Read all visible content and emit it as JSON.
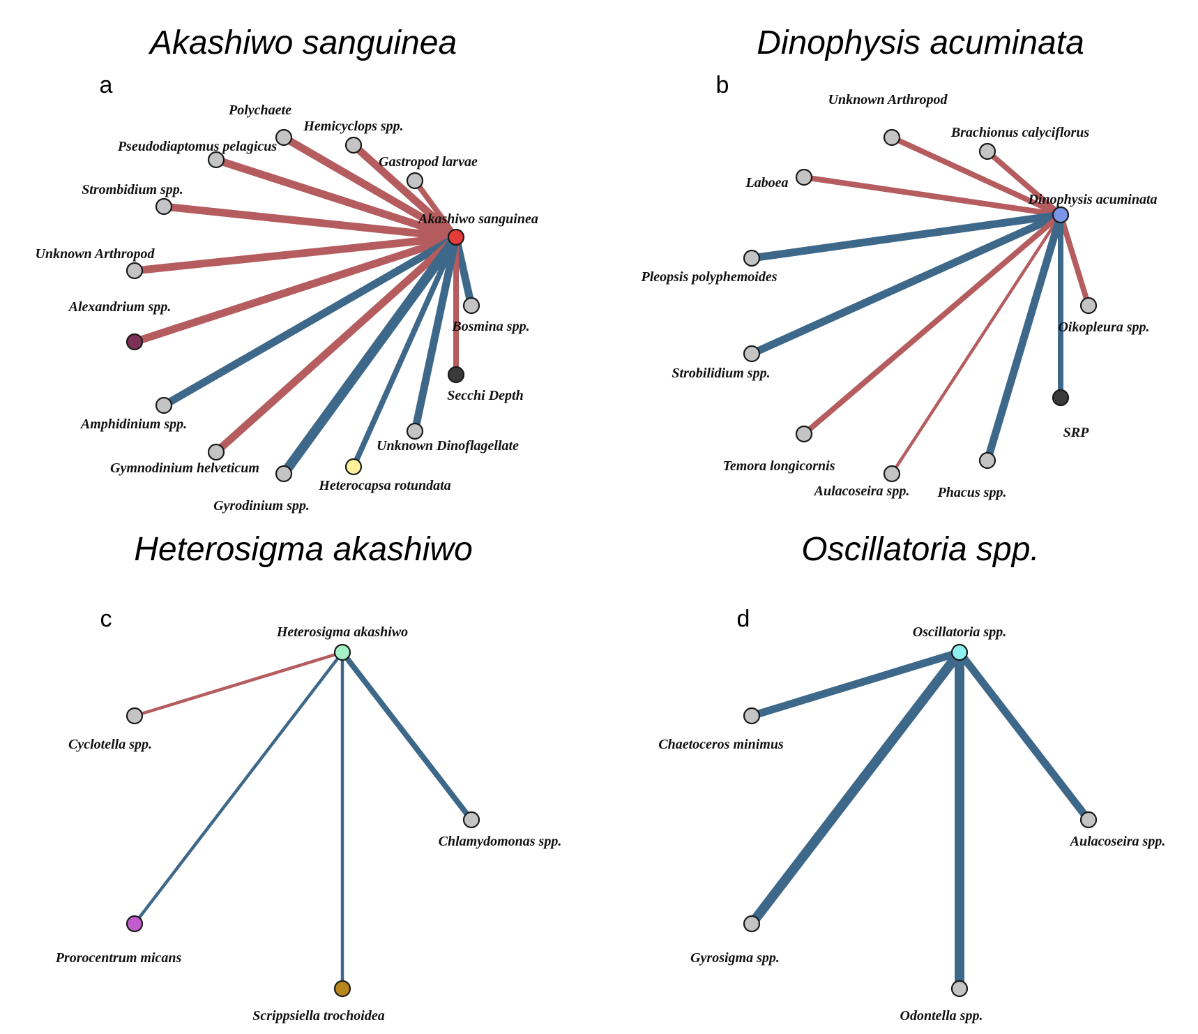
{
  "colors": {
    "positive": "#3d6889",
    "negative": "#b55c5f",
    "default_node": "#c4c4c4"
  },
  "panels": [
    {
      "letter": "a",
      "title": "Akashiwo sanguinea",
      "nodes": [
        {
          "label": "Akashiwo sanguinea",
          "color": "#e53b3b"
        },
        {
          "label": "Polychaete",
          "color": "#c4c4c4"
        },
        {
          "label": "Hemicyclops spp.",
          "color": "#c4c4c4"
        },
        {
          "label": "Pseudodiaptomus pelagicus",
          "color": "#c4c4c4"
        },
        {
          "label": "Gastropod larvae",
          "color": "#c4c4c4"
        },
        {
          "label": "Strombidium spp.",
          "color": "#c4c4c4"
        },
        {
          "label": "Unknown Arthropod",
          "color": "#c4c4c4"
        },
        {
          "label": "Alexandrium spp.",
          "color": "#7e3158"
        },
        {
          "label": "Bosmina spp.",
          "color": "#c4c4c4"
        },
        {
          "label": "Secchi Depth",
          "color": "#3a3a3a"
        },
        {
          "label": "Amphidinium spp.",
          "color": "#c4c4c4"
        },
        {
          "label": "Unknown Dinoflagellate",
          "color": "#c4c4c4"
        },
        {
          "label": "Gymnodinium helveticum",
          "color": "#c4c4c4"
        },
        {
          "label": "Gyrodinium spp.",
          "color": "#c4c4c4"
        },
        {
          "label": "Heterocapsa rotundata",
          "color": "#fff29a"
        }
      ],
      "edges": [
        {
          "target": "Polychaete",
          "sign": "negative",
          "weight": 3
        },
        {
          "target": "Hemicyclops spp.",
          "sign": "negative",
          "weight": 3
        },
        {
          "target": "Pseudodiaptomus pelagicus",
          "sign": "negative",
          "weight": 3
        },
        {
          "target": "Gastropod larvae",
          "sign": "negative",
          "weight": 2
        },
        {
          "target": "Strombidium spp.",
          "sign": "negative",
          "weight": 3
        },
        {
          "target": "Unknown Arthropod",
          "sign": "negative",
          "weight": 3
        },
        {
          "target": "Alexandrium spp.",
          "sign": "negative",
          "weight": 3
        },
        {
          "target": "Bosmina spp.",
          "sign": "positive",
          "weight": 3
        },
        {
          "target": "Secchi Depth",
          "sign": "negative",
          "weight": 2
        },
        {
          "target": "Amphidinium spp.",
          "sign": "positive",
          "weight": 3
        },
        {
          "target": "Unknown Dinoflagellate",
          "sign": "positive",
          "weight": 3
        },
        {
          "target": "Gymnodinium helveticum",
          "sign": "negative",
          "weight": 3
        },
        {
          "target": "Gyrodinium spp.",
          "sign": "positive",
          "weight": 4
        },
        {
          "target": "Heterocapsa rotundata",
          "sign": "positive",
          "weight": 2
        }
      ]
    },
    {
      "letter": "b",
      "title": "Dinophysis acuminata",
      "nodes": [
        {
          "label": "Dinophysis acuminata",
          "color": "#7d95e6"
        },
        {
          "label": "Unknown Arthropod",
          "color": "#c4c4c4"
        },
        {
          "label": "Brachionus calyciflorus",
          "color": "#c4c4c4"
        },
        {
          "label": "Laboea",
          "color": "#c4c4c4"
        },
        {
          "label": "Pleopsis polyphemoides",
          "color": "#c4c4c4"
        },
        {
          "label": "Oikopleura spp.",
          "color": "#c4c4c4"
        },
        {
          "label": "Strobilidium spp.",
          "color": "#c4c4c4"
        },
        {
          "label": "SRP",
          "color": "#3a3a3a"
        },
        {
          "label": "Temora longicornis",
          "color": "#c4c4c4"
        },
        {
          "label": "Aulacoseira spp.",
          "color": "#c4c4c4"
        },
        {
          "label": "Phacus spp.",
          "color": "#c4c4c4"
        }
      ],
      "edges": [
        {
          "target": "Unknown Arthropod",
          "sign": "negative",
          "weight": 2
        },
        {
          "target": "Brachionus calyciflorus",
          "sign": "negative",
          "weight": 2
        },
        {
          "target": "Laboea",
          "sign": "negative",
          "weight": 2
        },
        {
          "target": "Pleopsis polyphemoides",
          "sign": "positive",
          "weight": 3
        },
        {
          "target": "Oikopleura spp.",
          "sign": "negative",
          "weight": 2
        },
        {
          "target": "Strobilidium spp.",
          "sign": "positive",
          "weight": 3
        },
        {
          "target": "SRP",
          "sign": "positive",
          "weight": 2
        },
        {
          "target": "Temora longicornis",
          "sign": "negative",
          "weight": 2
        },
        {
          "target": "Aulacoseira spp.",
          "sign": "negative",
          "weight": 1
        },
        {
          "target": "Phacus spp.",
          "sign": "positive",
          "weight": 3
        }
      ]
    },
    {
      "letter": "c",
      "title": "Heterosigma akashiwo",
      "nodes": [
        {
          "label": "Heterosigma akashiwo",
          "color": "#a6f0c8"
        },
        {
          "label": "Cyclotella spp.",
          "color": "#c4c4c4"
        },
        {
          "label": "Chlamydomonas spp.",
          "color": "#c4c4c4"
        },
        {
          "label": "Prorocentrum micans",
          "color": "#c05dcc"
        },
        {
          "label": "Scrippsiella trochoidea",
          "color": "#b8861f"
        }
      ],
      "edges": [
        {
          "target": "Cyclotella spp.",
          "sign": "negative",
          "weight": 1
        },
        {
          "target": "Chlamydomonas spp.",
          "sign": "positive",
          "weight": 2
        },
        {
          "target": "Prorocentrum micans",
          "sign": "positive",
          "weight": 1
        },
        {
          "target": "Scrippsiella trochoidea",
          "sign": "positive",
          "weight": 1
        }
      ]
    },
    {
      "letter": "d",
      "title": "Oscillatoria spp.",
      "nodes": [
        {
          "label": "Oscillatoria spp.",
          "color": "#8ff0f0"
        },
        {
          "label": "Chaetoceros minimus",
          "color": "#c4c4c4"
        },
        {
          "label": "Aulacoseira spp.",
          "color": "#c4c4c4"
        },
        {
          "label": "Gyrosigma spp.",
          "color": "#c4c4c4"
        },
        {
          "label": "Odontella spp.",
          "color": "#c4c4c4"
        }
      ],
      "edges": [
        {
          "target": "Chaetoceros minimus",
          "sign": "positive",
          "weight": 3
        },
        {
          "target": "Aulacoseira spp.",
          "sign": "positive",
          "weight": 3
        },
        {
          "target": "Gyrosigma spp.",
          "sign": "positive",
          "weight": 4
        },
        {
          "target": "Odontella spp.",
          "sign": "positive",
          "weight": 4
        }
      ]
    }
  ]
}
